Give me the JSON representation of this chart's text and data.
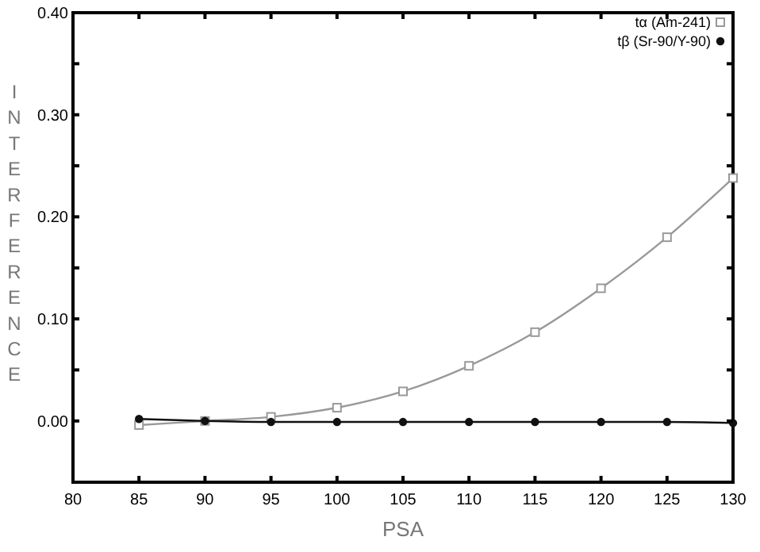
{
  "chart_data": {
    "type": "line",
    "xlabel": "PSA",
    "ylabel": "INTERFERENCE",
    "x": [
      85,
      90,
      95,
      100,
      105,
      110,
      115,
      120,
      125,
      130
    ],
    "series": [
      {
        "name": "tα (Am-241)",
        "color": "#999999",
        "marker": "square",
        "values": [
          -0.004,
          0,
          0.004,
          0.013,
          0.029,
          0.054,
          0.087,
          0.13,
          0.18,
          0.238
        ]
      },
      {
        "name": "tβ (Sr-90/Y-90)",
        "color": "#111111",
        "marker": "circle",
        "values": [
          0.002,
          0,
          -0.001,
          -0.001,
          -0.001,
          -0.001,
          -0.001,
          -0.001,
          -0.001,
          -0.002
        ]
      }
    ],
    "xlim": [
      80,
      130
    ],
    "xticks": [
      80,
      85,
      90,
      95,
      100,
      105,
      110,
      115,
      120,
      125,
      130
    ],
    "ylim": [
      -0.06,
      0.4
    ],
    "yticks": [
      {
        "value": 0,
        "label": "0.00"
      },
      {
        "value": 0.05,
        "label": null
      },
      {
        "value": 0.1,
        "label": "0.10"
      },
      {
        "value": 0.15,
        "label": null
      },
      {
        "value": 0.2,
        "label": "0.20"
      },
      {
        "value": 0.25,
        "label": null
      },
      {
        "value": 0.3,
        "label": "0.30"
      },
      {
        "value": 0.35,
        "label": null
      },
      {
        "value": 0.4,
        "label": "0.40"
      }
    ],
    "grid": false,
    "legend": "top right",
    "line_style": "solid"
  }
}
